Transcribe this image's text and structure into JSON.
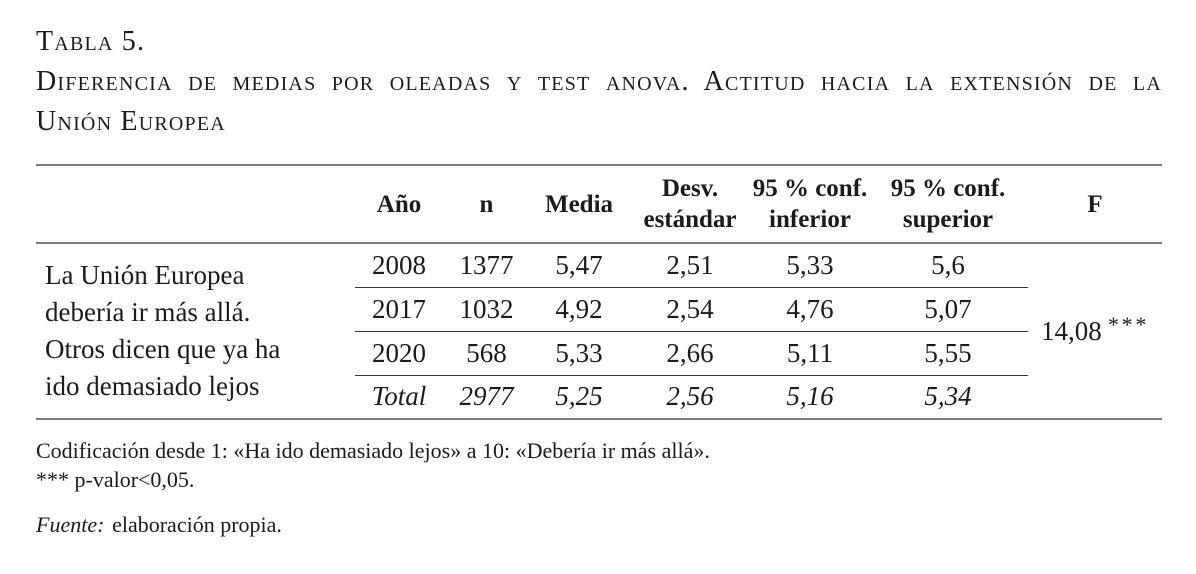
{
  "page": {
    "background_color": "#ffffff",
    "text_color": "#1b1b1b",
    "rule_color": "#7d7d7d",
    "row_separator_color": "#383838"
  },
  "title": {
    "label": "Tabla 5.",
    "line1": "Diferencia de medias por oleadas y test anova. Actitud hacia la extensión de la",
    "line2": "Unión Europea"
  },
  "table": {
    "row_label": "La Unión Europea\ndebería ir más allá.\nOtros dicen que ya ha\nido demasiado lejos",
    "columns": {
      "label": "",
      "year": "Año",
      "n": "n",
      "mean": "Media",
      "sd": "Desv.\nestándar",
      "ci_low": "95 % conf.\ninferior",
      "ci_high": "95 % conf.\nsuperior",
      "f": "F"
    },
    "rows": [
      {
        "year": "2008",
        "n": "1377",
        "mean": "5,47",
        "sd": "2,51",
        "ci_low": "5,33",
        "ci_high": "5,6"
      },
      {
        "year": "2017",
        "n": "1032",
        "mean": "4,92",
        "sd": "2,54",
        "ci_low": "4,76",
        "ci_high": "5,07"
      },
      {
        "year": "2020",
        "n": "568",
        "mean": "5,33",
        "sd": "2,66",
        "ci_low": "5,11",
        "ci_high": "5,55"
      },
      {
        "year": "Total",
        "n": "2977",
        "mean": "5,25",
        "sd": "2,56",
        "ci_low": "5,16",
        "ci_high": "5,34"
      }
    ],
    "f_value": "14,08",
    "f_stars": "***"
  },
  "notes": {
    "coding": "Codificación desde 1: «Ha ido demasiado lejos» a 10: «Debería ir más allá».",
    "significance": "*** p-valor<0,05.",
    "source_label": "Fuente:",
    "source_text": "elaboración propia."
  }
}
